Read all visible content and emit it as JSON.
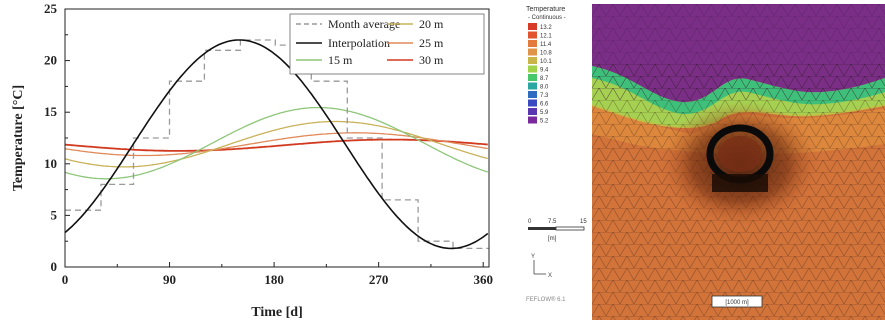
{
  "chart_data": {
    "type": "line",
    "xlabel": "Time [d]",
    "ylabel": "Temperature [°C]",
    "xlim": [
      0,
      365
    ],
    "ylim": [
      0,
      25
    ],
    "x_ticks": [
      "0",
      "90",
      "180",
      "270",
      "360"
    ],
    "y_ticks": [
      "0",
      "5",
      "10",
      "15",
      "20",
      "25"
    ],
    "grid": false,
    "legend_position": "top-right",
    "series": [
      {
        "name": "Month average",
        "style": "dashed",
        "color": "#9a9a9a",
        "x": [
          0,
          31,
          59,
          90,
          120,
          151,
          181,
          212,
          243,
          273,
          304,
          334,
          365
        ],
        "y": [
          5.5,
          8.0,
          12.5,
          18.0,
          21.0,
          22.0,
          21.5,
          18.0,
          12.5,
          6.5,
          2.5,
          1.8,
          5.0
        ]
      },
      {
        "name": "Interpolation",
        "style": "solid",
        "color": "#111111",
        "mean": 11.9,
        "amplitude": 10.1,
        "peak_day": 150
      },
      {
        "name": "15 m",
        "style": "solid",
        "color": "#8ec67a",
        "mean": 12.0,
        "amplitude": 3.45,
        "peak_day": 218
      },
      {
        "name": "20 m",
        "style": "solid",
        "color": "#c9b25a",
        "mean": 11.9,
        "amplitude": 2.2,
        "peak_day": 233
      },
      {
        "name": "25 m",
        "style": "solid",
        "color": "#e08a5a",
        "mean": 11.9,
        "amplitude": 1.1,
        "peak_day": 250
      },
      {
        "name": "30 m",
        "style": "solid",
        "color": "#d23a20",
        "mean": 11.8,
        "amplitude": 0.55,
        "peak_day": 280
      }
    ]
  },
  "fem_panel": {
    "legend_title": "Temperature",
    "legend_subtitle": "- Continuous -",
    "legend_values": [
      "13.2",
      "12.1",
      "11.4",
      "10.8",
      "10.1",
      "9.4",
      "8.7",
      "8.0",
      "7.3",
      "6.6",
      "5.9",
      "5.2"
    ],
    "legend_colors": [
      "#d83a28",
      "#e2542e",
      "#e27a3c",
      "#e0944a",
      "#c9b548",
      "#9fd34a",
      "#46c86a",
      "#2aa7a0",
      "#2f6cc0",
      "#3a4ac0",
      "#5a36b0",
      "#7a2a9c"
    ],
    "scale_values": [
      "0",
      "7.5",
      "15"
    ],
    "scale_unit": "[m]",
    "footer_text": "FEFLOW® 6.1",
    "box_text": "[1000 m]",
    "axis_y": "Y",
    "axis_x": "X"
  }
}
